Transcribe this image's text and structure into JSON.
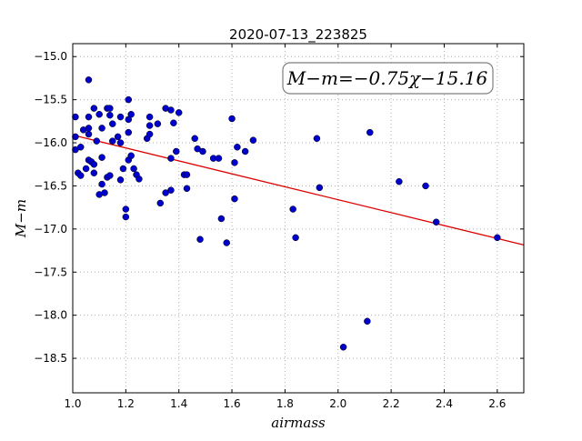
{
  "chart_data": {
    "type": "scatter",
    "title": "2020-07-13_223825",
    "xlabel": "airmass",
    "ylabel": "M−m",
    "xlim": [
      1.0,
      2.7
    ],
    "ylim": [
      -18.9,
      -14.85
    ],
    "y_inverted": false,
    "grid": true,
    "x_ticks": [
      1.0,
      1.2,
      1.4,
      1.6,
      1.8,
      2.0,
      2.2,
      2.4,
      2.6
    ],
    "x_tick_labels": [
      "1.0",
      "1.2",
      "1.4",
      "1.6",
      "1.8",
      "2.0",
      "2.2",
      "2.4",
      "2.6"
    ],
    "y_ticks": [
      -15.0,
      -15.5,
      -16.0,
      -16.5,
      -17.0,
      -17.5,
      -18.0,
      -18.5
    ],
    "y_tick_labels": [
      "−15.0",
      "−15.5",
      "−16.0",
      "−16.5",
      "−17.0",
      "−17.5",
      "−18.0",
      "−18.5"
    ],
    "annotation": "M−m=−0.75χ−15.16",
    "marker_color": "#0000cc",
    "fit_color": "#dd0000",
    "fit": {
      "slope": -0.75,
      "intercept": -15.16,
      "x_range": [
        1.0,
        2.7
      ]
    },
    "series": [
      {
        "points": [
          [
            1.01,
            -15.7
          ],
          [
            1.01,
            -15.93
          ],
          [
            1.01,
            -16.08
          ],
          [
            1.02,
            -16.35
          ],
          [
            1.03,
            -16.05
          ],
          [
            1.03,
            -16.38
          ],
          [
            1.04,
            -15.85
          ],
          [
            1.05,
            -16.3
          ],
          [
            1.06,
            -15.27
          ],
          [
            1.06,
            -15.7
          ],
          [
            1.06,
            -15.83
          ],
          [
            1.06,
            -15.9
          ],
          [
            1.06,
            -16.2
          ],
          [
            1.07,
            -16.22
          ],
          [
            1.08,
            -15.6
          ],
          [
            1.08,
            -16.25
          ],
          [
            1.08,
            -16.35
          ],
          [
            1.09,
            -15.98
          ],
          [
            1.1,
            -15.67
          ],
          [
            1.1,
            -16.6
          ],
          [
            1.11,
            -16.48
          ],
          [
            1.11,
            -15.83
          ],
          [
            1.11,
            -16.17
          ],
          [
            1.12,
            -16.58
          ],
          [
            1.13,
            -16.4
          ],
          [
            1.13,
            -15.6
          ],
          [
            1.14,
            -15.6
          ],
          [
            1.14,
            -15.68
          ],
          [
            1.14,
            -16.38
          ],
          [
            1.15,
            -15.78
          ],
          [
            1.15,
            -15.98
          ],
          [
            1.17,
            -15.93
          ],
          [
            1.18,
            -16.0
          ],
          [
            1.18,
            -15.7
          ],
          [
            1.18,
            -16.43
          ],
          [
            1.19,
            -16.3
          ],
          [
            1.2,
            -16.77
          ],
          [
            1.2,
            -16.86
          ],
          [
            1.21,
            -15.5
          ],
          [
            1.21,
            -15.73
          ],
          [
            1.21,
            -15.88
          ],
          [
            1.21,
            -16.2
          ],
          [
            1.22,
            -16.15
          ],
          [
            1.22,
            -15.67
          ],
          [
            1.23,
            -16.3
          ],
          [
            1.24,
            -16.37
          ],
          [
            1.25,
            -16.42
          ],
          [
            1.28,
            -15.95
          ],
          [
            1.29,
            -15.8
          ],
          [
            1.29,
            -15.7
          ],
          [
            1.29,
            -15.9
          ],
          [
            1.32,
            -15.78
          ],
          [
            1.33,
            -16.7
          ],
          [
            1.35,
            -15.6
          ],
          [
            1.35,
            -16.58
          ],
          [
            1.37,
            -16.18
          ],
          [
            1.37,
            -15.62
          ],
          [
            1.37,
            -16.55
          ],
          [
            1.38,
            -15.77
          ],
          [
            1.39,
            -16.1
          ],
          [
            1.4,
            -15.65
          ],
          [
            1.42,
            -16.37
          ],
          [
            1.43,
            -16.37
          ],
          [
            1.43,
            -16.53
          ],
          [
            1.46,
            -15.95
          ],
          [
            1.47,
            -16.07
          ],
          [
            1.48,
            -17.12
          ],
          [
            1.49,
            -16.1
          ],
          [
            1.53,
            -16.18
          ],
          [
            1.55,
            -16.18
          ],
          [
            1.56,
            -16.88
          ],
          [
            1.58,
            -17.16
          ],
          [
            1.6,
            -15.72
          ],
          [
            1.61,
            -16.23
          ],
          [
            1.61,
            -16.65
          ],
          [
            1.62,
            -16.05
          ],
          [
            1.65,
            -16.1
          ],
          [
            1.68,
            -15.97
          ],
          [
            1.83,
            -16.77
          ],
          [
            1.84,
            -17.1
          ],
          [
            1.92,
            -15.95
          ],
          [
            1.93,
            -16.52
          ],
          [
            2.02,
            -18.37
          ],
          [
            2.11,
            -18.07
          ],
          [
            2.12,
            -15.88
          ],
          [
            2.23,
            -16.45
          ],
          [
            2.33,
            -16.5
          ],
          [
            2.37,
            -16.92
          ],
          [
            2.6,
            -17.1
          ]
        ]
      }
    ]
  }
}
